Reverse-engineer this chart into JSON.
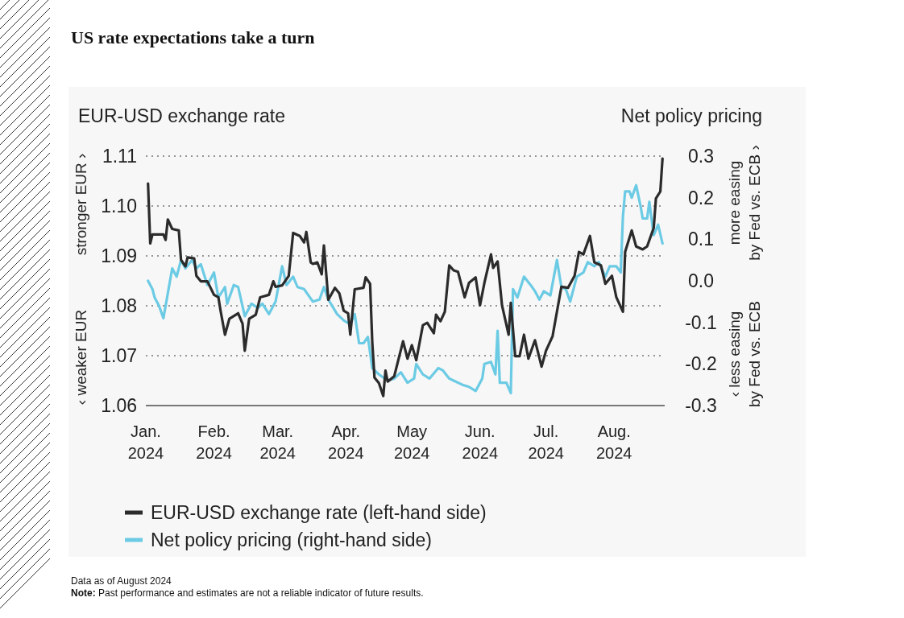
{
  "chart_data": {
    "type": "line",
    "title": "US rate expectations take a turn",
    "ylabel": "EUR-USD exchange rate",
    "y2label": "Net policy pricing",
    "xlim": [
      "2024-01-01",
      "2024-08-24"
    ],
    "xticks": [
      {
        "value": "2024-01-01",
        "label": "Jan.\n2024"
      },
      {
        "value": "2024-02-01",
        "label": "Feb.\n2024"
      },
      {
        "value": "2024-03-01",
        "label": "Mar.\n2024"
      },
      {
        "value": "2024-04-01",
        "label": "Apr.\n2024"
      },
      {
        "value": "2024-05-01",
        "label": "May\n2024"
      },
      {
        "value": "2024-06-01",
        "label": "Jun.\n2024"
      },
      {
        "value": "2024-07-01",
        "label": "Jul.\n2024"
      },
      {
        "value": "2024-08-01",
        "label": "Aug.\n2024"
      }
    ],
    "ylim": [
      1.06,
      1.11
    ],
    "yticks": [
      1.06,
      1.07,
      1.08,
      1.09,
      {
        "value": 1.1,
        "label": "1.10"
      },
      1.11
    ],
    "y2lim": [
      -0.3,
      0.3
    ],
    "y2ticks": [
      -0.3,
      -0.2,
      -0.1,
      {
        "value": 0,
        "label": "0.0"
      },
      0.1,
      0.2,
      0.3
    ],
    "grid": "y",
    "legend": "bottom",
    "line_style": "solid",
    "series": [
      {
        "name": "EUR-USD exchange rate (left-hand side)",
        "color": "#2b2b2b",
        "x": [
          "2024-01-02",
          "2024-01-03",
          "2024-01-04",
          "2024-01-09",
          "2024-01-10",
          "2024-01-11",
          "2024-01-13",
          "2024-01-16",
          "2024-01-17",
          "2024-01-19",
          "2024-01-20",
          "2024-01-23",
          "2024-01-24",
          "2024-01-26",
          "2024-01-29",
          "2024-02-01",
          "2024-02-03",
          "2024-02-04",
          "2024-02-06",
          "2024-02-08",
          "2024-02-12",
          "2024-02-14",
          "2024-02-15",
          "2024-02-17",
          "2024-02-20",
          "2024-02-22",
          "2024-02-26",
          "2024-02-28",
          "2024-02-29",
          "2024-03-03",
          "2024-03-06",
          "2024-03-08",
          "2024-03-11",
          "2024-03-13",
          "2024-03-14",
          "2024-03-16",
          "2024-03-17",
          "2024-03-19",
          "2024-03-21",
          "2024-03-22",
          "2024-03-24",
          "2024-03-27",
          "2024-03-29",
          "2024-03-31",
          "2024-04-02",
          "2024-04-03",
          "2024-04-05",
          "2024-04-09",
          "2024-04-10",
          "2024-04-12",
          "2024-04-13",
          "2024-04-14",
          "2024-04-16",
          "2024-04-18",
          "2024-04-19",
          "2024-04-20",
          "2024-04-23",
          "2024-04-25",
          "2024-04-27",
          "2024-04-29",
          "2024-05-01",
          "2024-05-03",
          "2024-05-06",
          "2024-05-08",
          "2024-05-11",
          "2024-05-12",
          "2024-05-14",
          "2024-05-16",
          "2024-05-18",
          "2024-05-20",
          "2024-05-22",
          "2024-05-25",
          "2024-05-27",
          "2024-05-30",
          "2024-06-01",
          "2024-06-03",
          "2024-06-06",
          "2024-06-07",
          "2024-06-09",
          "2024-06-11",
          "2024-06-14",
          "2024-06-15",
          "2024-06-17",
          "2024-06-19",
          "2024-06-21",
          "2024-06-23",
          "2024-06-26",
          "2024-06-29",
          "2024-07-01",
          "2024-07-04",
          "2024-07-08",
          "2024-07-11",
          "2024-07-14",
          "2024-07-16",
          "2024-07-18",
          "2024-07-21",
          "2024-07-23",
          "2024-07-26",
          "2024-07-28",
          "2024-07-31",
          "2024-08-02",
          "2024-08-05",
          "2024-08-06",
          "2024-08-09",
          "2024-08-11",
          "2024-08-14",
          "2024-08-16",
          "2024-08-19",
          "2024-08-20",
          "2024-08-22",
          "2024-08-23"
        ],
        "values": [
          1.1045,
          1.0925,
          1.0943,
          1.0943,
          1.0932,
          1.0973,
          1.0954,
          1.0951,
          1.0892,
          1.0879,
          1.0897,
          1.0895,
          1.086,
          1.0849,
          1.0849,
          1.0822,
          1.0817,
          1.079,
          1.0742,
          1.0774,
          1.0785,
          1.0764,
          1.071,
          1.0774,
          1.0782,
          1.0817,
          1.0822,
          1.0849,
          1.0838,
          1.0841,
          1.086,
          1.0946,
          1.094,
          1.0927,
          1.0948,
          1.0887,
          1.0884,
          1.0887,
          1.0863,
          1.0921,
          1.0812,
          1.0836,
          1.0825,
          1.079,
          1.0785,
          1.0742,
          1.0833,
          1.0836,
          1.0857,
          1.0844,
          1.0726,
          1.0656,
          1.0645,
          1.0619,
          1.067,
          1.0648,
          1.0659,
          1.0694,
          1.0729,
          1.0694,
          1.0721,
          1.0691,
          1.0761,
          1.0766,
          1.0745,
          1.0782,
          1.0769,
          1.0788,
          1.0881,
          1.0871,
          1.0868,
          1.0817,
          1.0846,
          1.0857,
          1.0801,
          1.0846,
          1.0903,
          1.0876,
          1.0889,
          1.0801,
          1.0742,
          1.0806,
          1.0699,
          1.0699,
          1.0742,
          1.0694,
          1.0731,
          1.0678,
          1.071,
          1.0739,
          1.0838,
          1.0836,
          1.086,
          1.0908,
          1.0903,
          1.094,
          1.0887,
          1.0881,
          1.0844,
          1.086,
          1.0817,
          1.0788,
          1.0908,
          1.0951,
          1.0919,
          1.0913,
          1.0919,
          1.0956,
          1.1015,
          1.1029,
          1.1095
        ]
      },
      {
        "name": "Net policy pricing (right-hand side)",
        "color": "#6ccbe4",
        "axis": "y2",
        "x": [
          "2024-01-02",
          "2024-01-04",
          "2024-01-05",
          "2024-01-07",
          "2024-01-09",
          "2024-01-11",
          "2024-01-13",
          "2024-01-15",
          "2024-01-17",
          "2024-01-19",
          "2024-01-22",
          "2024-01-24",
          "2024-01-26",
          "2024-01-29",
          "2024-02-01",
          "2024-02-03",
          "2024-02-06",
          "2024-02-07",
          "2024-02-10",
          "2024-02-12",
          "2024-02-15",
          "2024-02-18",
          "2024-02-21",
          "2024-02-23",
          "2024-02-26",
          "2024-02-29",
          "2024-03-03",
          "2024-03-05",
          "2024-03-08",
          "2024-03-10",
          "2024-03-13",
          "2024-03-17",
          "2024-03-20",
          "2024-03-22",
          "2024-03-24",
          "2024-03-28",
          "2024-03-31",
          "2024-04-03",
          "2024-04-05",
          "2024-04-07",
          "2024-04-09",
          "2024-04-11",
          "2024-04-13",
          "2024-04-16",
          "2024-04-20",
          "2024-04-23",
          "2024-04-26",
          "2024-04-29",
          "2024-05-02",
          "2024-05-03",
          "2024-05-06",
          "2024-05-09",
          "2024-05-13",
          "2024-05-15",
          "2024-05-18",
          "2024-05-20",
          "2024-05-24",
          "2024-05-27",
          "2024-05-30",
          "2024-06-02",
          "2024-06-03",
          "2024-06-06",
          "2024-06-08",
          "2024-06-09",
          "2024-06-10",
          "2024-06-13",
          "2024-06-15",
          "2024-06-16",
          "2024-06-18",
          "2024-06-21",
          "2024-06-24",
          "2024-06-26",
          "2024-06-28",
          "2024-06-30",
          "2024-07-03",
          "2024-07-06",
          "2024-07-08",
          "2024-07-10",
          "2024-07-12",
          "2024-07-15",
          "2024-07-18",
          "2024-07-20",
          "2024-07-23",
          "2024-07-25",
          "2024-07-28",
          "2024-07-30",
          "2024-08-02",
          "2024-08-04",
          "2024-08-05",
          "2024-08-06",
          "2024-08-08",
          "2024-08-09",
          "2024-08-11",
          "2024-08-13",
          "2024-08-14",
          "2024-08-16",
          "2024-08-17",
          "2024-08-19",
          "2024-08-21",
          "2024-08-23"
        ],
        "values": [
          0.0,
          -0.02,
          -0.04,
          -0.06,
          -0.09,
          -0.03,
          0.03,
          0.01,
          0.05,
          0.03,
          0.05,
          0.03,
          0.04,
          -0.01,
          0.02,
          -0.04,
          -0.015,
          -0.055,
          -0.01,
          -0.015,
          -0.085,
          -0.055,
          -0.065,
          -0.055,
          -0.08,
          -0.05,
          0.035,
          -0.01,
          0.01,
          -0.015,
          -0.02,
          -0.05,
          -0.045,
          -0.015,
          -0.045,
          -0.08,
          -0.095,
          -0.105,
          -0.08,
          -0.15,
          -0.15,
          -0.135,
          -0.21,
          -0.225,
          -0.24,
          -0.235,
          -0.22,
          -0.245,
          -0.235,
          -0.2,
          -0.225,
          -0.235,
          -0.21,
          -0.215,
          -0.235,
          -0.24,
          -0.25,
          -0.255,
          -0.265,
          -0.235,
          -0.2,
          -0.195,
          -0.225,
          -0.12,
          -0.245,
          -0.245,
          -0.27,
          -0.02,
          -0.04,
          0.01,
          -0.01,
          -0.025,
          -0.045,
          -0.025,
          -0.035,
          0.05,
          -0.015,
          -0.02,
          -0.05,
          0.01,
          0.02,
          0.045,
          0.035,
          0.045,
          0.01,
          0.035,
          0.035,
          0.02,
          0.155,
          0.215,
          0.215,
          0.2,
          0.23,
          0.18,
          0.15,
          0.15,
          0.19,
          0.11,
          0.135,
          0.09
        ]
      }
    ],
    "annotations": [
      "stronger EUR ›",
      "‹ weaker EUR",
      "more easing\nby Fed vs. ECB ›",
      "‹ less easing\nby Fed vs. ECB",
      "Data as of August 2024",
      "Note: Past performance and estimates are not a reliable indicator of future results."
    ]
  }
}
